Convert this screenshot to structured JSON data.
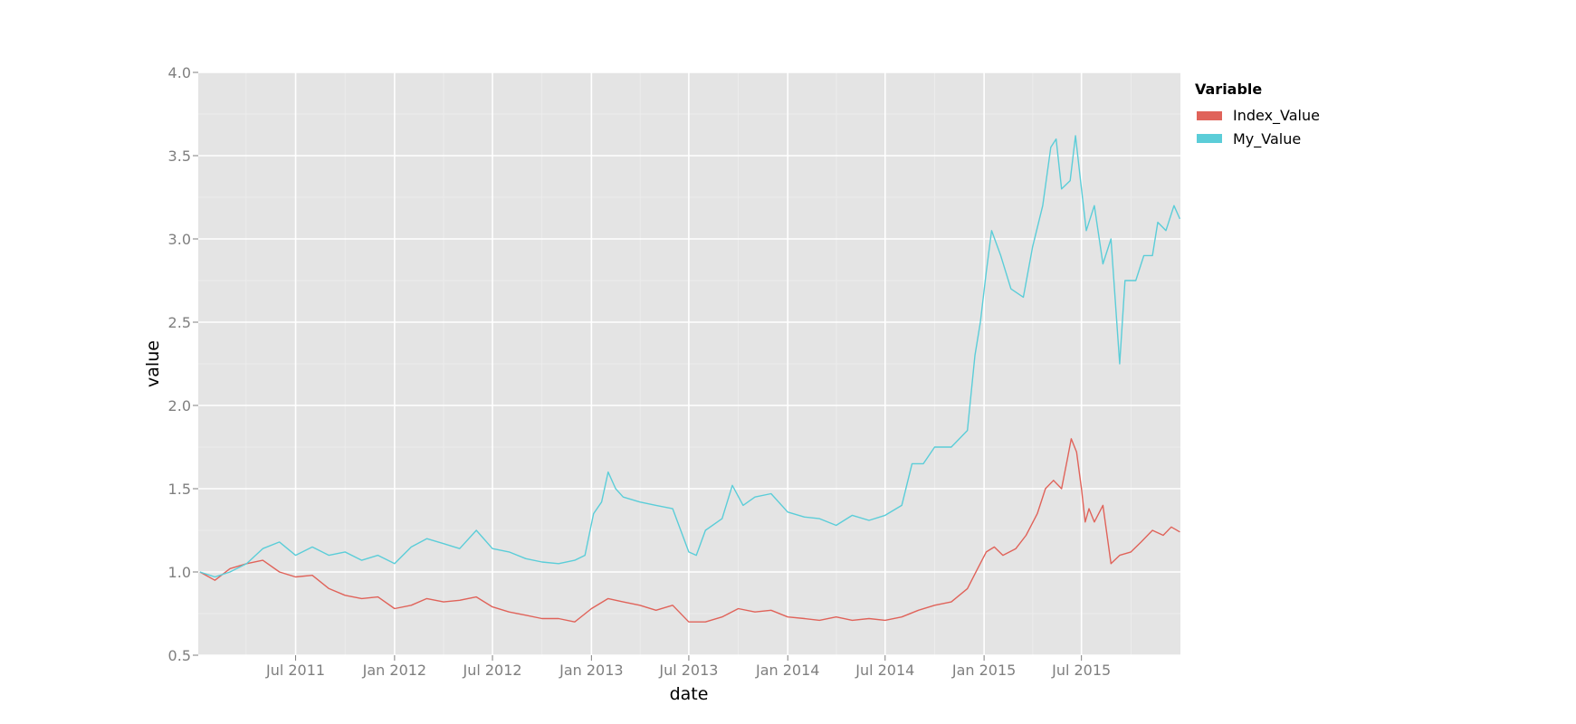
{
  "chart_data": {
    "type": "line",
    "title": "",
    "xlabel": "date",
    "ylabel": "value",
    "x_ticks": [
      "Jul 2011",
      "Jan 2012",
      "Jul 2012",
      "Jan 2013",
      "Jul 2013",
      "Jan 2014",
      "Jul 2014",
      "Jan 2015",
      "Jul 2015"
    ],
    "y_ticks": [
      "0.5",
      "1.0",
      "1.5",
      "2.0",
      "2.5",
      "3.0",
      "3.5",
      "4.0"
    ],
    "xlim": [
      "2011-01-01",
      "2015-12-31"
    ],
    "ylim": [
      0.5,
      4.0
    ],
    "grid": true,
    "legend": {
      "title": "Variable",
      "position": "right"
    },
    "series": [
      {
        "name": "Index_Value",
        "color": "#e0635a",
        "points": [
          [
            "2011-01-04",
            1.0
          ],
          [
            "2011-02-01",
            0.95
          ],
          [
            "2011-03-01",
            1.02
          ],
          [
            "2011-04-01",
            1.05
          ],
          [
            "2011-05-01",
            1.07
          ],
          [
            "2011-06-01",
            1.0
          ],
          [
            "2011-07-01",
            0.97
          ],
          [
            "2011-08-01",
            0.98
          ],
          [
            "2011-09-01",
            0.9
          ],
          [
            "2011-10-01",
            0.86
          ],
          [
            "2011-11-01",
            0.84
          ],
          [
            "2011-12-01",
            0.85
          ],
          [
            "2012-01-01",
            0.78
          ],
          [
            "2012-02-01",
            0.8
          ],
          [
            "2012-03-01",
            0.84
          ],
          [
            "2012-04-01",
            0.82
          ],
          [
            "2012-05-01",
            0.83
          ],
          [
            "2012-06-01",
            0.85
          ],
          [
            "2012-07-01",
            0.79
          ],
          [
            "2012-08-01",
            0.76
          ],
          [
            "2012-09-01",
            0.74
          ],
          [
            "2012-10-01",
            0.72
          ],
          [
            "2012-11-01",
            0.72
          ],
          [
            "2012-12-01",
            0.7
          ],
          [
            "2013-01-01",
            0.78
          ],
          [
            "2013-02-01",
            0.84
          ],
          [
            "2013-03-01",
            0.82
          ],
          [
            "2013-04-01",
            0.8
          ],
          [
            "2013-05-01",
            0.77
          ],
          [
            "2013-06-01",
            0.8
          ],
          [
            "2013-07-01",
            0.7
          ],
          [
            "2013-08-01",
            0.7
          ],
          [
            "2013-09-01",
            0.73
          ],
          [
            "2013-10-01",
            0.78
          ],
          [
            "2013-11-01",
            0.76
          ],
          [
            "2013-12-01",
            0.77
          ],
          [
            "2014-01-01",
            0.73
          ],
          [
            "2014-02-01",
            0.72
          ],
          [
            "2014-03-01",
            0.71
          ],
          [
            "2014-04-01",
            0.73
          ],
          [
            "2014-05-01",
            0.71
          ],
          [
            "2014-06-01",
            0.72
          ],
          [
            "2014-07-01",
            0.71
          ],
          [
            "2014-08-01",
            0.73
          ],
          [
            "2014-09-01",
            0.77
          ],
          [
            "2014-10-01",
            0.8
          ],
          [
            "2014-11-01",
            0.82
          ],
          [
            "2014-12-01",
            0.9
          ],
          [
            "2014-12-20",
            1.02
          ],
          [
            "2015-01-05",
            1.12
          ],
          [
            "2015-01-20",
            1.15
          ],
          [
            "2015-02-05",
            1.1
          ],
          [
            "2015-03-01",
            1.14
          ],
          [
            "2015-03-20",
            1.22
          ],
          [
            "2015-04-10",
            1.35
          ],
          [
            "2015-04-25",
            1.5
          ],
          [
            "2015-05-10",
            1.55
          ],
          [
            "2015-05-25",
            1.5
          ],
          [
            "2015-06-05",
            1.68
          ],
          [
            "2015-06-12",
            1.8
          ],
          [
            "2015-06-22",
            1.72
          ],
          [
            "2015-07-01",
            1.5
          ],
          [
            "2015-07-08",
            1.3
          ],
          [
            "2015-07-15",
            1.38
          ],
          [
            "2015-07-25",
            1.3
          ],
          [
            "2015-08-10",
            1.4
          ],
          [
            "2015-08-25",
            1.05
          ],
          [
            "2015-09-10",
            1.1
          ],
          [
            "2015-10-01",
            1.12
          ],
          [
            "2015-10-20",
            1.18
          ],
          [
            "2015-11-10",
            1.25
          ],
          [
            "2015-11-30",
            1.22
          ],
          [
            "2015-12-15",
            1.27
          ],
          [
            "2015-12-31",
            1.24
          ]
        ]
      },
      {
        "name": "My_Value",
        "color": "#5bcdd8",
        "points": [
          [
            "2011-01-04",
            1.0
          ],
          [
            "2011-02-01",
            0.97
          ],
          [
            "2011-03-01",
            1.0
          ],
          [
            "2011-04-01",
            1.05
          ],
          [
            "2011-05-01",
            1.14
          ],
          [
            "2011-06-01",
            1.18
          ],
          [
            "2011-07-01",
            1.1
          ],
          [
            "2011-08-01",
            1.15
          ],
          [
            "2011-09-01",
            1.1
          ],
          [
            "2011-10-01",
            1.12
          ],
          [
            "2011-11-01",
            1.07
          ],
          [
            "2011-12-01",
            1.1
          ],
          [
            "2012-01-01",
            1.05
          ],
          [
            "2012-02-01",
            1.15
          ],
          [
            "2012-03-01",
            1.2
          ],
          [
            "2012-04-01",
            1.17
          ],
          [
            "2012-05-01",
            1.14
          ],
          [
            "2012-06-01",
            1.25
          ],
          [
            "2012-07-01",
            1.14
          ],
          [
            "2012-08-01",
            1.12
          ],
          [
            "2012-09-01",
            1.08
          ],
          [
            "2012-10-01",
            1.06
          ],
          [
            "2012-11-01",
            1.05
          ],
          [
            "2012-12-01",
            1.07
          ],
          [
            "2012-12-20",
            1.1
          ],
          [
            "2013-01-05",
            1.35
          ],
          [
            "2013-01-20",
            1.42
          ],
          [
            "2013-02-01",
            1.6
          ],
          [
            "2013-02-15",
            1.5
          ],
          [
            "2013-03-01",
            1.45
          ],
          [
            "2013-04-01",
            1.42
          ],
          [
            "2013-05-01",
            1.4
          ],
          [
            "2013-06-01",
            1.38
          ],
          [
            "2013-07-01",
            1.12
          ],
          [
            "2013-07-15",
            1.1
          ],
          [
            "2013-08-01",
            1.25
          ],
          [
            "2013-09-01",
            1.32
          ],
          [
            "2013-09-20",
            1.52
          ],
          [
            "2013-10-10",
            1.4
          ],
          [
            "2013-11-01",
            1.45
          ],
          [
            "2013-12-01",
            1.47
          ],
          [
            "2014-01-01",
            1.36
          ],
          [
            "2014-02-01",
            1.33
          ],
          [
            "2014-03-01",
            1.32
          ],
          [
            "2014-04-01",
            1.28
          ],
          [
            "2014-05-01",
            1.34
          ],
          [
            "2014-06-01",
            1.31
          ],
          [
            "2014-07-01",
            1.34
          ],
          [
            "2014-08-01",
            1.4
          ],
          [
            "2014-08-20",
            1.65
          ],
          [
            "2014-09-10",
            1.65
          ],
          [
            "2014-10-01",
            1.75
          ],
          [
            "2014-11-01",
            1.75
          ],
          [
            "2014-12-01",
            1.85
          ],
          [
            "2014-12-15",
            2.3
          ],
          [
            "2014-12-25",
            2.5
          ],
          [
            "2015-01-05",
            2.8
          ],
          [
            "2015-01-15",
            3.05
          ],
          [
            "2015-02-01",
            2.9
          ],
          [
            "2015-02-20",
            2.7
          ],
          [
            "2015-03-15",
            2.65
          ],
          [
            "2015-04-01",
            2.95
          ],
          [
            "2015-04-20",
            3.2
          ],
          [
            "2015-05-05",
            3.55
          ],
          [
            "2015-05-15",
            3.6
          ],
          [
            "2015-05-25",
            3.3
          ],
          [
            "2015-06-10",
            3.35
          ],
          [
            "2015-06-20",
            3.62
          ],
          [
            "2015-07-01",
            3.3
          ],
          [
            "2015-07-10",
            3.05
          ],
          [
            "2015-07-25",
            3.2
          ],
          [
            "2015-08-10",
            2.85
          ],
          [
            "2015-08-25",
            3.0
          ],
          [
            "2015-09-10",
            2.25
          ],
          [
            "2015-09-20",
            2.75
          ],
          [
            "2015-10-10",
            2.75
          ],
          [
            "2015-10-25",
            2.9
          ],
          [
            "2015-11-10",
            2.9
          ],
          [
            "2015-11-20",
            3.1
          ],
          [
            "2015-12-05",
            3.05
          ],
          [
            "2015-12-20",
            3.2
          ],
          [
            "2015-12-31",
            3.12
          ]
        ]
      }
    ]
  }
}
